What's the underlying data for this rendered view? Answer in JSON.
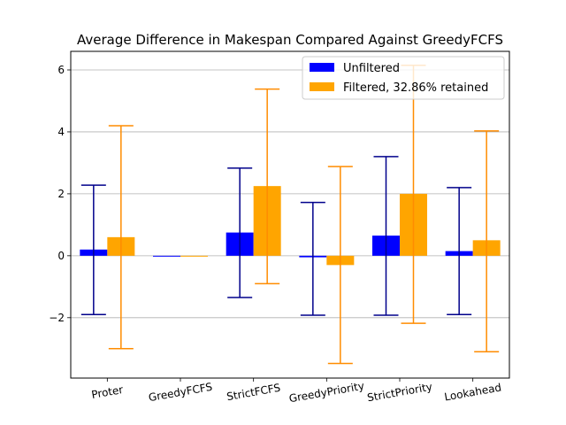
{
  "chart_data": {
    "type": "bar",
    "title": "Average Difference in Makespan Compared Against GreedyFCFS",
    "xlabel": "",
    "ylabel": "",
    "categories": [
      "Proter",
      "GreedyFCFS",
      "StrictFCFS",
      "GreedyPriority",
      "StrictPriority",
      "Lookahead"
    ],
    "series": [
      {
        "name": "Unfiltered",
        "color": "#0000ff",
        "error_color": "#00008b",
        "values": [
          0.2,
          0.0,
          0.75,
          -0.05,
          0.65,
          0.15
        ],
        "error_low": [
          -1.9,
          0.0,
          -1.35,
          -1.92,
          -1.92,
          -1.9
        ],
        "error_high": [
          2.28,
          0.0,
          2.83,
          1.72,
          3.2,
          2.2
        ]
      },
      {
        "name": "Filtered, 32.86% retained",
        "color": "#ffa500",
        "error_color": "#ff8c00",
        "values": [
          0.6,
          0.0,
          2.25,
          -0.3,
          2.0,
          0.5
        ],
        "error_low": [
          -3.0,
          0.0,
          -0.9,
          -3.48,
          -2.18,
          -3.1
        ],
        "error_high": [
          4.2,
          0.0,
          5.38,
          2.88,
          6.15,
          4.03
        ]
      }
    ],
    "yticks": [
      -2,
      0,
      2,
      4,
      6
    ],
    "ylim": [
      -3.95,
      6.6
    ],
    "grid": "y",
    "legend": "top-right",
    "xtick_rotation": -10
  }
}
